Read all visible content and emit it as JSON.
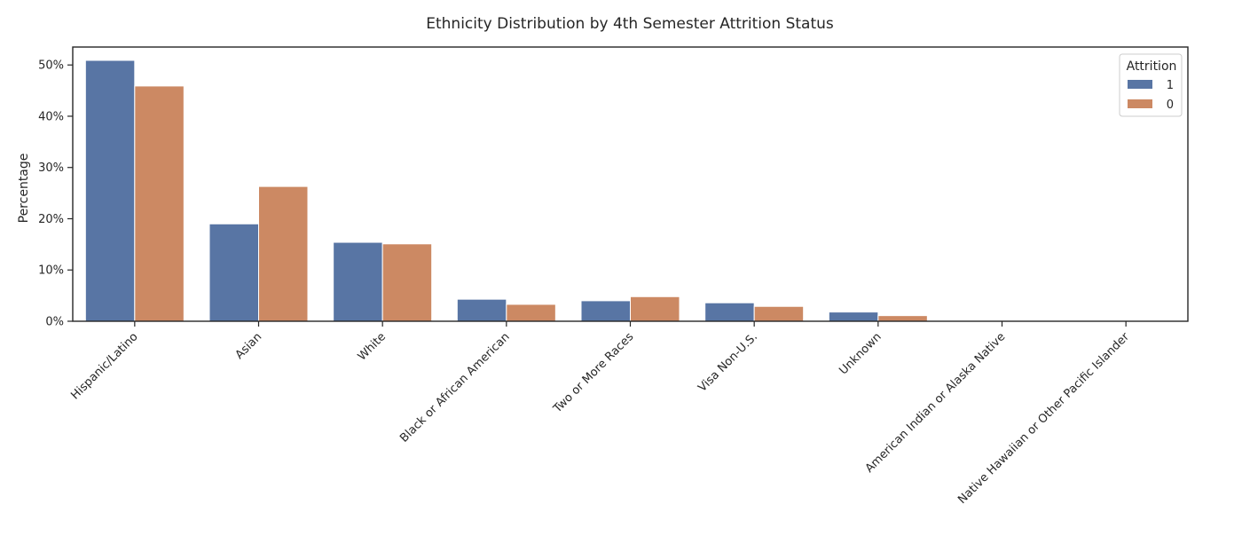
{
  "chart_data": {
    "type": "bar",
    "title": "Ethnicity Distribution by 4th Semester Attrition Status",
    "xlabel": "",
    "ylabel": "Percentage",
    "ylim": [
      0,
      53.5
    ],
    "yticks": [
      0,
      10,
      20,
      30,
      40,
      50
    ],
    "ytick_labels": [
      "0%",
      "10%",
      "20%",
      "30%",
      "40%",
      "50%"
    ],
    "categories": [
      "Hispanic/Latino",
      "Asian",
      "White",
      "Black or African American",
      "Two or More Races",
      "Visa Non-U.S.",
      "Unknown",
      "American Indian or Alaska Native",
      "Native Hawaiian or Other Pacific Islander"
    ],
    "series": [
      {
        "name": "1",
        "color": "#5875a4",
        "values": [
          50.9,
          19.0,
          15.4,
          4.3,
          4.0,
          3.6,
          1.8,
          0.1,
          0.0
        ]
      },
      {
        "name": "0",
        "color": "#cc8963",
        "values": [
          45.9,
          26.3,
          15.1,
          3.3,
          4.8,
          2.9,
          1.1,
          0.1,
          0.0
        ]
      }
    ],
    "legend": {
      "title": "Attrition",
      "position": "top-right"
    },
    "grid": false
  }
}
